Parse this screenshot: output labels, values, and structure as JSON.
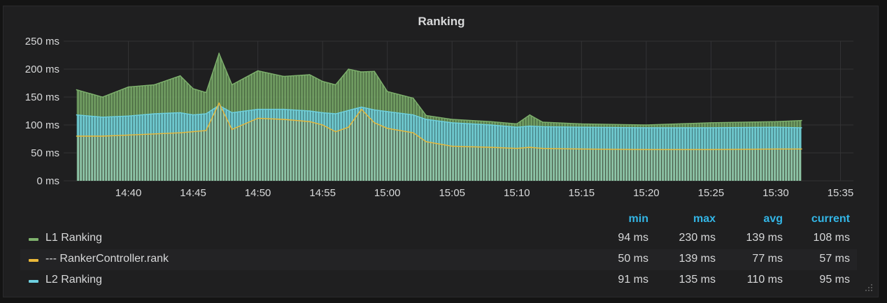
{
  "panel": {
    "title": "Ranking"
  },
  "chart_data": {
    "type": "area",
    "title": "Ranking",
    "yunit": "ms",
    "ylim": [
      0,
      250
    ],
    "y_ticks": [
      "0 ms",
      "50 ms",
      "100 ms",
      "150 ms",
      "200 ms",
      "250 ms"
    ],
    "xlim": [
      "14:35",
      "15:36"
    ],
    "x_ticks": [
      "14:40",
      "14:45",
      "14:50",
      "14:55",
      "15:00",
      "15:05",
      "15:10",
      "15:15",
      "15:20",
      "15:25",
      "15:30",
      "15:35"
    ],
    "x": [
      "14:36",
      "14:38",
      "14:40",
      "14:42",
      "14:44",
      "14:45",
      "14:46",
      "14:47",
      "14:48",
      "14:50",
      "14:52",
      "14:54",
      "14:55",
      "14:56",
      "14:57",
      "14:58",
      "14:59",
      "15:00",
      "15:02",
      "15:03",
      "15:05",
      "15:08",
      "15:10",
      "15:11",
      "15:12",
      "15:15",
      "15:20",
      "15:25",
      "15:30",
      "15:32"
    ],
    "series": [
      {
        "name": "L1 Ranking",
        "color": "#7eb26d",
        "values": [
          163,
          150,
          168,
          172,
          188,
          165,
          158,
          228,
          172,
          197,
          187,
          190,
          178,
          172,
          200,
          195,
          196,
          160,
          148,
          117,
          110,
          106,
          102,
          118,
          105,
          102,
          100,
          104,
          106,
          108
        ]
      },
      {
        "name": "--- RankerController.rank",
        "color": "#eab839",
        "values": [
          80,
          80,
          82,
          84,
          86,
          88,
          90,
          139,
          92,
          112,
          110,
          106,
          100,
          88,
          96,
          128,
          104,
          94,
          86,
          70,
          62,
          60,
          58,
          60,
          58,
          57,
          56,
          56,
          57,
          57
        ]
      },
      {
        "name": "L2 Ranking",
        "color": "#6ed0e0",
        "values": [
          118,
          114,
          116,
          120,
          122,
          118,
          120,
          135,
          122,
          128,
          128,
          125,
          122,
          120,
          126,
          132,
          127,
          124,
          118,
          110,
          104,
          100,
          96,
          98,
          97,
          96,
          95,
          95,
          96,
          95
        ]
      }
    ],
    "grid": true,
    "legend_position": "bottom"
  },
  "legend": {
    "headers": {
      "min": "min",
      "max": "max",
      "avg": "avg",
      "current": "current"
    },
    "rows": [
      {
        "name": "L1 Ranking",
        "color": "#7eb26d",
        "min": "94 ms",
        "max": "230 ms",
        "avg": "139 ms",
        "current": "108 ms"
      },
      {
        "name": "--- RankerController.rank",
        "color": "#eab839",
        "min": "50 ms",
        "max": "139 ms",
        "avg": "77 ms",
        "current": "57 ms"
      },
      {
        "name": "L2 Ranking",
        "color": "#6ed0e0",
        "min": "91 ms",
        "max": "135 ms",
        "avg": "110 ms",
        "current": "95 ms"
      }
    ]
  }
}
